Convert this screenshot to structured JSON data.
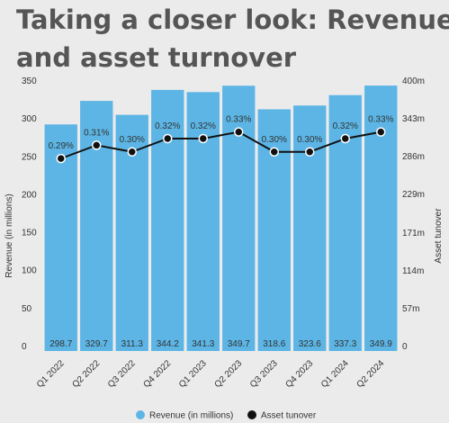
{
  "chart_data": {
    "type": "bar_line",
    "title": [
      "Taking a closer look: Revenue",
      "and asset turnover"
    ],
    "y_label": "Revenue (in millions)",
    "y2_label": "Asset tunover",
    "categories": [
      "Q1 2022",
      "Q2 2022",
      "Q3 2022",
      "Q4 2022",
      "Q1 2023",
      "Q2 2023",
      "Q3 2023",
      "Q4 2023",
      "Q1 2024",
      "Q2 2024"
    ],
    "series": [
      {
        "name": "Revenue (in millions)",
        "type": "bar",
        "color": "#5cb5e5",
        "values": [
          298.7,
          329.7,
          311.3,
          344.2,
          341.3,
          349.7,
          318.6,
          323.6,
          337.3,
          349.9
        ]
      },
      {
        "name": "Asset tunover",
        "type": "line",
        "axis": "y2",
        "color": "#111111",
        "values": [
          0.29,
          0.31,
          0.3,
          0.32,
          0.32,
          0.33,
          0.3,
          0.3,
          0.32,
          0.33
        ],
        "value_labels": [
          "0.29%",
          "0.31%",
          "0.30%",
          "0.32%",
          "0.32%",
          "0.33%",
          "0.30%",
          "0.30%",
          "0.32%",
          "0.33%"
        ]
      }
    ],
    "ylim": [
      0,
      350
    ],
    "yticks": [
      0,
      50,
      100,
      150,
      200,
      250,
      300,
      350
    ],
    "y2lim": [
      0,
      0.4
    ],
    "y2ticks": [
      0,
      {
        "value": 0.057,
        "label": "57m"
      },
      {
        "value": 0.114,
        "label": "114m"
      },
      {
        "value": 0.171,
        "label": "171m"
      },
      {
        "value": 0.229,
        "label": "229m"
      },
      {
        "value": 0.286,
        "label": "286m"
      },
      {
        "value": 0.343,
        "label": "343m"
      },
      {
        "value": 0.4,
        "label": "400m"
      }
    ],
    "legend": "bottom"
  }
}
